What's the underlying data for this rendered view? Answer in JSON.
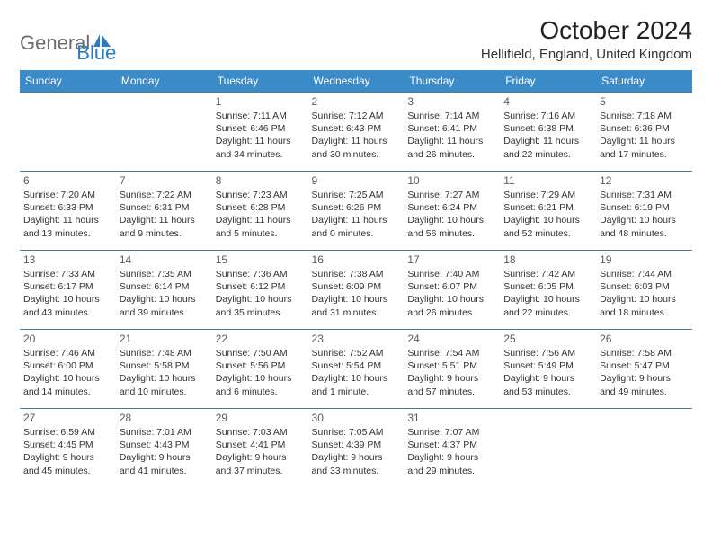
{
  "logo": {
    "general": "General",
    "blue": "Blue"
  },
  "title": "October 2024",
  "location": "Hellifield, England, United Kingdom",
  "colors": {
    "header_bg": "#3b8bc9",
    "header_text": "#ffffff",
    "row_border": "#4a79a5",
    "logo_gray": "#6b6b6b",
    "logo_blue": "#2a7bbf"
  },
  "days_of_week": [
    "Sunday",
    "Monday",
    "Tuesday",
    "Wednesday",
    "Thursday",
    "Friday",
    "Saturday"
  ],
  "weeks": [
    [
      null,
      null,
      {
        "n": "1",
        "sunrise": "Sunrise: 7:11 AM",
        "sunset": "Sunset: 6:46 PM",
        "day1": "Daylight: 11 hours",
        "day2": "and 34 minutes."
      },
      {
        "n": "2",
        "sunrise": "Sunrise: 7:12 AM",
        "sunset": "Sunset: 6:43 PM",
        "day1": "Daylight: 11 hours",
        "day2": "and 30 minutes."
      },
      {
        "n": "3",
        "sunrise": "Sunrise: 7:14 AM",
        "sunset": "Sunset: 6:41 PM",
        "day1": "Daylight: 11 hours",
        "day2": "and 26 minutes."
      },
      {
        "n": "4",
        "sunrise": "Sunrise: 7:16 AM",
        "sunset": "Sunset: 6:38 PM",
        "day1": "Daylight: 11 hours",
        "day2": "and 22 minutes."
      },
      {
        "n": "5",
        "sunrise": "Sunrise: 7:18 AM",
        "sunset": "Sunset: 6:36 PM",
        "day1": "Daylight: 11 hours",
        "day2": "and 17 minutes."
      }
    ],
    [
      {
        "n": "6",
        "sunrise": "Sunrise: 7:20 AM",
        "sunset": "Sunset: 6:33 PM",
        "day1": "Daylight: 11 hours",
        "day2": "and 13 minutes."
      },
      {
        "n": "7",
        "sunrise": "Sunrise: 7:22 AM",
        "sunset": "Sunset: 6:31 PM",
        "day1": "Daylight: 11 hours",
        "day2": "and 9 minutes."
      },
      {
        "n": "8",
        "sunrise": "Sunrise: 7:23 AM",
        "sunset": "Sunset: 6:28 PM",
        "day1": "Daylight: 11 hours",
        "day2": "and 5 minutes."
      },
      {
        "n": "9",
        "sunrise": "Sunrise: 7:25 AM",
        "sunset": "Sunset: 6:26 PM",
        "day1": "Daylight: 11 hours",
        "day2": "and 0 minutes."
      },
      {
        "n": "10",
        "sunrise": "Sunrise: 7:27 AM",
        "sunset": "Sunset: 6:24 PM",
        "day1": "Daylight: 10 hours",
        "day2": "and 56 minutes."
      },
      {
        "n": "11",
        "sunrise": "Sunrise: 7:29 AM",
        "sunset": "Sunset: 6:21 PM",
        "day1": "Daylight: 10 hours",
        "day2": "and 52 minutes."
      },
      {
        "n": "12",
        "sunrise": "Sunrise: 7:31 AM",
        "sunset": "Sunset: 6:19 PM",
        "day1": "Daylight: 10 hours",
        "day2": "and 48 minutes."
      }
    ],
    [
      {
        "n": "13",
        "sunrise": "Sunrise: 7:33 AM",
        "sunset": "Sunset: 6:17 PM",
        "day1": "Daylight: 10 hours",
        "day2": "and 43 minutes."
      },
      {
        "n": "14",
        "sunrise": "Sunrise: 7:35 AM",
        "sunset": "Sunset: 6:14 PM",
        "day1": "Daylight: 10 hours",
        "day2": "and 39 minutes."
      },
      {
        "n": "15",
        "sunrise": "Sunrise: 7:36 AM",
        "sunset": "Sunset: 6:12 PM",
        "day1": "Daylight: 10 hours",
        "day2": "and 35 minutes."
      },
      {
        "n": "16",
        "sunrise": "Sunrise: 7:38 AM",
        "sunset": "Sunset: 6:09 PM",
        "day1": "Daylight: 10 hours",
        "day2": "and 31 minutes."
      },
      {
        "n": "17",
        "sunrise": "Sunrise: 7:40 AM",
        "sunset": "Sunset: 6:07 PM",
        "day1": "Daylight: 10 hours",
        "day2": "and 26 minutes."
      },
      {
        "n": "18",
        "sunrise": "Sunrise: 7:42 AM",
        "sunset": "Sunset: 6:05 PM",
        "day1": "Daylight: 10 hours",
        "day2": "and 22 minutes."
      },
      {
        "n": "19",
        "sunrise": "Sunrise: 7:44 AM",
        "sunset": "Sunset: 6:03 PM",
        "day1": "Daylight: 10 hours",
        "day2": "and 18 minutes."
      }
    ],
    [
      {
        "n": "20",
        "sunrise": "Sunrise: 7:46 AM",
        "sunset": "Sunset: 6:00 PM",
        "day1": "Daylight: 10 hours",
        "day2": "and 14 minutes."
      },
      {
        "n": "21",
        "sunrise": "Sunrise: 7:48 AM",
        "sunset": "Sunset: 5:58 PM",
        "day1": "Daylight: 10 hours",
        "day2": "and 10 minutes."
      },
      {
        "n": "22",
        "sunrise": "Sunrise: 7:50 AM",
        "sunset": "Sunset: 5:56 PM",
        "day1": "Daylight: 10 hours",
        "day2": "and 6 minutes."
      },
      {
        "n": "23",
        "sunrise": "Sunrise: 7:52 AM",
        "sunset": "Sunset: 5:54 PM",
        "day1": "Daylight: 10 hours",
        "day2": "and 1 minute."
      },
      {
        "n": "24",
        "sunrise": "Sunrise: 7:54 AM",
        "sunset": "Sunset: 5:51 PM",
        "day1": "Daylight: 9 hours",
        "day2": "and 57 minutes."
      },
      {
        "n": "25",
        "sunrise": "Sunrise: 7:56 AM",
        "sunset": "Sunset: 5:49 PM",
        "day1": "Daylight: 9 hours",
        "day2": "and 53 minutes."
      },
      {
        "n": "26",
        "sunrise": "Sunrise: 7:58 AM",
        "sunset": "Sunset: 5:47 PM",
        "day1": "Daylight: 9 hours",
        "day2": "and 49 minutes."
      }
    ],
    [
      {
        "n": "27",
        "sunrise": "Sunrise: 6:59 AM",
        "sunset": "Sunset: 4:45 PM",
        "day1": "Daylight: 9 hours",
        "day2": "and 45 minutes."
      },
      {
        "n": "28",
        "sunrise": "Sunrise: 7:01 AM",
        "sunset": "Sunset: 4:43 PM",
        "day1": "Daylight: 9 hours",
        "day2": "and 41 minutes."
      },
      {
        "n": "29",
        "sunrise": "Sunrise: 7:03 AM",
        "sunset": "Sunset: 4:41 PM",
        "day1": "Daylight: 9 hours",
        "day2": "and 37 minutes."
      },
      {
        "n": "30",
        "sunrise": "Sunrise: 7:05 AM",
        "sunset": "Sunset: 4:39 PM",
        "day1": "Daylight: 9 hours",
        "day2": "and 33 minutes."
      },
      {
        "n": "31",
        "sunrise": "Sunrise: 7:07 AM",
        "sunset": "Sunset: 4:37 PM",
        "day1": "Daylight: 9 hours",
        "day2": "and 29 minutes."
      },
      null,
      null
    ]
  ]
}
